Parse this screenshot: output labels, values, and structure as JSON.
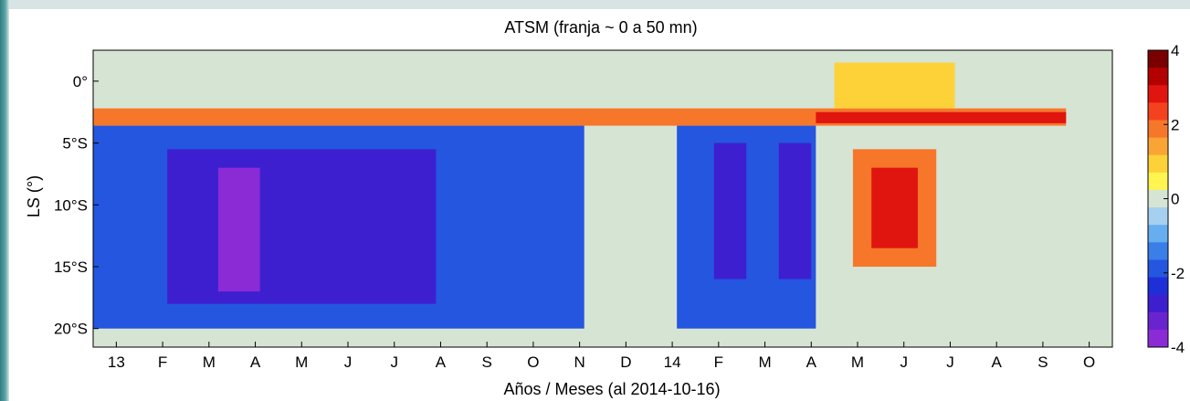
{
  "chart_data": {
    "type": "heatmap",
    "title": "ATSM   (franja ~ 0 a 50 mn)",
    "xlabel": "Años / Meses  (al 2014-10-16)",
    "ylabel": "LS (°)",
    "x_ticks": [
      "13",
      "F",
      "M",
      "A",
      "M",
      "J",
      "J",
      "A",
      "S",
      "O",
      "N",
      "D",
      "14",
      "F",
      "M",
      "A",
      "M",
      "J",
      "J",
      "A",
      "S",
      "O"
    ],
    "y_ticks": [
      "0°",
      "5°S",
      "10°S",
      "15°S",
      "20°S"
    ],
    "y_tick_values": [
      0,
      -5,
      -10,
      -15,
      -20
    ],
    "ylim": [
      -21.5,
      2.5
    ],
    "colorbar": {
      "ticks": [
        "4",
        "2",
        "0",
        "-2",
        "-4"
      ],
      "range": [
        -4,
        4
      ],
      "colors": [
        "#7a0000",
        "#b30000",
        "#e0150f",
        "#f5421e",
        "#f7772a",
        "#fba436",
        "#fdd239",
        "#fff450",
        "#d6e4d4",
        "#a6d0f0",
        "#66aef0",
        "#3a7ee8",
        "#2556e0",
        "#1e2fd8",
        "#3d1fd0",
        "#6a24cf",
        "#8b2bd6"
      ]
    },
    "regions": [
      {
        "x0": 0,
        "x1": 21,
        "y0": 2.5,
        "y1": -21.5,
        "v": 0
      },
      {
        "x0": 0,
        "x1": 21,
        "y0": -2.2,
        "y1": -3.6,
        "v": 2
      },
      {
        "x0": 0,
        "x1": 10.6,
        "y0": -3.6,
        "y1": -20,
        "v": -2
      },
      {
        "x0": 1.6,
        "x1": 7.4,
        "y0": -5.5,
        "y1": -18,
        "v": -3
      },
      {
        "x0": 2.7,
        "x1": 3.6,
        "y0": -7,
        "y1": -17,
        "v": -4
      },
      {
        "x0": 12.6,
        "x1": 15.6,
        "y0": -3.6,
        "y1": -20,
        "v": -2
      },
      {
        "x0": 13.4,
        "x1": 14.1,
        "y0": -5,
        "y1": -16,
        "v": -3
      },
      {
        "x0": 14.8,
        "x1": 15.5,
        "y0": -5,
        "y1": -16,
        "v": -3
      },
      {
        "x0": 16.4,
        "x1": 18.2,
        "y0": -5.5,
        "y1": -15,
        "v": 2
      },
      {
        "x0": 16.8,
        "x1": 17.8,
        "y0": -7,
        "y1": -13.5,
        "v": 3
      },
      {
        "x0": 15.6,
        "x1": 21,
        "y0": -2.5,
        "y1": -3.4,
        "v": 3
      },
      {
        "x0": 16,
        "x1": 18.6,
        "y0": 1.5,
        "y1": -2.2,
        "v": 1
      }
    ]
  }
}
